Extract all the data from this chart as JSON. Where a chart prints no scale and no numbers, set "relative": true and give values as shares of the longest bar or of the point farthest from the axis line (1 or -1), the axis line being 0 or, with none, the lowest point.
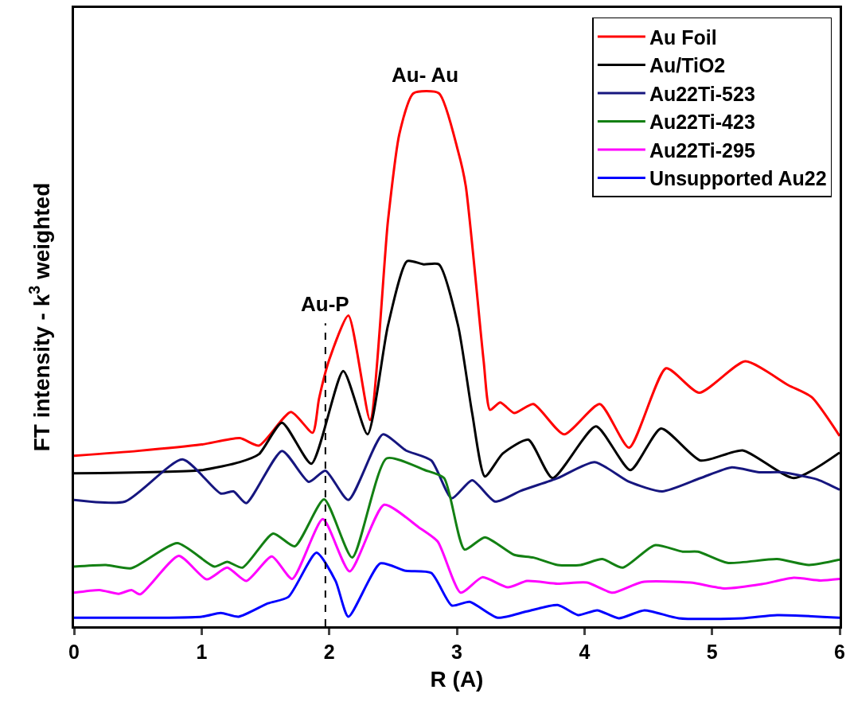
{
  "chart_data": {
    "type": "line",
    "relative": true,
    "xlabel": "R (A)",
    "ylabel": "FT intensity - k$^{3}$ weighted",
    "xlim": [
      0,
      6
    ],
    "xticks": [
      0,
      1,
      2,
      3,
      4,
      5,
      6
    ],
    "tick_labels": "x",
    "grid": false,
    "legend": "top right",
    "line_style": "solid",
    "marker": "none",
    "annotations": [
      {
        "text": "Au- Au",
        "x": 2.75,
        "y": 1
      }
    ],
    "ref_lines": [
      {
        "axis": "x",
        "value": 1.97,
        "label": "Au-P",
        "color": "#000000",
        "line_style": "dashed"
      }
    ],
    "series": [
      {
        "name": "Au Foil",
        "color": "#ff0000",
        "x": [
          0,
          0.5,
          1.0,
          1.3,
          1.45,
          1.7,
          1.87,
          1.92,
          2.0,
          2.15,
          2.32,
          2.46,
          2.55,
          2.66,
          2.86,
          3.01,
          3.07,
          3.21,
          3.26,
          3.34,
          3.45,
          3.6,
          3.84,
          4.12,
          4.35,
          4.64,
          4.9,
          5.26,
          5.6,
          5.78,
          6.0
        ],
        "values": [
          0.32,
          0.329,
          0.341,
          0.353,
          0.339,
          0.402,
          0.363,
          0.427,
          0.5,
          0.583,
          0.387,
          0.76,
          0.924,
          1,
          1,
          0.891,
          0.826,
          0.498,
          0.406,
          0.42,
          0.4,
          0.417,
          0.36,
          0.417,
          0.335,
          0.484,
          0.438,
          0.497,
          0.452,
          0.43,
          0.357
        ]
      },
      {
        "name": "Au/TiO2",
        "color": "#000000",
        "x": [
          0,
          1.0,
          1.3,
          1.45,
          1.63,
          1.86,
          2.11,
          2.3,
          2.46,
          2.61,
          2.74,
          2.86,
          3.01,
          3.12,
          3.22,
          3.36,
          3.56,
          3.75,
          4.09,
          4.36,
          4.6,
          4.91,
          5.24,
          5.64,
          6.0
        ],
        "values": [
          0.287,
          0.293,
          0.308,
          0.323,
          0.382,
          0.305,
          0.479,
          0.36,
          0.564,
          0.685,
          0.679,
          0.679,
          0.564,
          0.4,
          0.281,
          0.324,
          0.35,
          0.278,
          0.375,
          0.293,
          0.371,
          0.311,
          0.33,
          0.278,
          0.326
        ]
      },
      {
        "name": "Au22Ti-523",
        "color": "#16167f",
        "x": [
          0,
          0.4,
          0.85,
          1.15,
          1.25,
          1.35,
          1.63,
          1.84,
          1.97,
          2.15,
          2.42,
          2.6,
          2.8,
          2.96,
          3.12,
          3.3,
          3.5,
          3.79,
          4.08,
          4.35,
          4.61,
          4.91,
          5.15,
          5.37,
          5.55,
          5.83,
          6.0
        ],
        "values": [
          0.237,
          0.234,
          0.313,
          0.249,
          0.253,
          0.231,
          0.329,
          0.271,
          0.292,
          0.237,
          0.36,
          0.33,
          0.311,
          0.24,
          0.274,
          0.234,
          0.254,
          0.278,
          0.308,
          0.271,
          0.253,
          0.278,
          0.298,
          0.289,
          0.289,
          0.275,
          0.256
        ]
      },
      {
        "name": "Au22Ti-423",
        "color": "#138013",
        "x": [
          0,
          0.25,
          0.45,
          0.81,
          1.1,
          1.2,
          1.32,
          1.56,
          1.73,
          1.96,
          2.18,
          2.45,
          2.75,
          2.9,
          3.06,
          3.22,
          3.45,
          3.6,
          3.79,
          3.97,
          4.14,
          4.3,
          4.55,
          4.77,
          4.89,
          5.12,
          5.51,
          5.76,
          6.0
        ],
        "values": [
          0.112,
          0.115,
          0.109,
          0.156,
          0.112,
          0.121,
          0.11,
          0.174,
          0.15,
          0.238,
          0.129,
          0.315,
          0.293,
          0.278,
          0.144,
          0.167,
          0.134,
          0.129,
          0.115,
          0.115,
          0.126,
          0.11,
          0.152,
          0.14,
          0.14,
          0.119,
          0.126,
          0.115,
          0.125
        ]
      },
      {
        "name": "Au22Ti-295",
        "color": "#ff00ff",
        "x": [
          0,
          0.2,
          0.35,
          0.45,
          0.52,
          0.82,
          1.04,
          1.2,
          1.35,
          1.55,
          1.71,
          1.95,
          2.16,
          2.43,
          2.7,
          2.85,
          3.03,
          3.2,
          3.4,
          3.55,
          3.79,
          4.02,
          4.22,
          4.45,
          4.83,
          5.1,
          5.39,
          5.64,
          5.85,
          6.0
        ],
        "values": [
          0.063,
          0.068,
          0.061,
          0.068,
          0.06,
          0.132,
          0.088,
          0.11,
          0.085,
          0.131,
          0.089,
          0.201,
          0.103,
          0.228,
          0.186,
          0.159,
          0.063,
          0.092,
          0.073,
          0.085,
          0.08,
          0.082,
          0.063,
          0.083,
          0.082,
          0.071,
          0.079,
          0.091,
          0.086,
          0.089
        ]
      },
      {
        "name": "Unsupported Au22",
        "color": "#0000ff",
        "x": [
          0,
          1.0,
          1.15,
          1.29,
          1.52,
          1.68,
          1.9,
          2.05,
          2.15,
          2.4,
          2.6,
          2.8,
          2.96,
          3.1,
          3.32,
          3.55,
          3.79,
          3.95,
          4.1,
          4.27,
          4.47,
          4.74,
          5.24,
          5.51,
          6.0
        ],
        "values": [
          0.016,
          0.018,
          0.025,
          0.018,
          0.043,
          0.055,
          0.138,
          0.085,
          0.018,
          0.118,
          0.104,
          0.1,
          0.039,
          0.046,
          0.016,
          0.028,
          0.04,
          0.021,
          0.03,
          0.015,
          0.03,
          0.015,
          0.015,
          0.021,
          0.016
        ]
      }
    ]
  }
}
